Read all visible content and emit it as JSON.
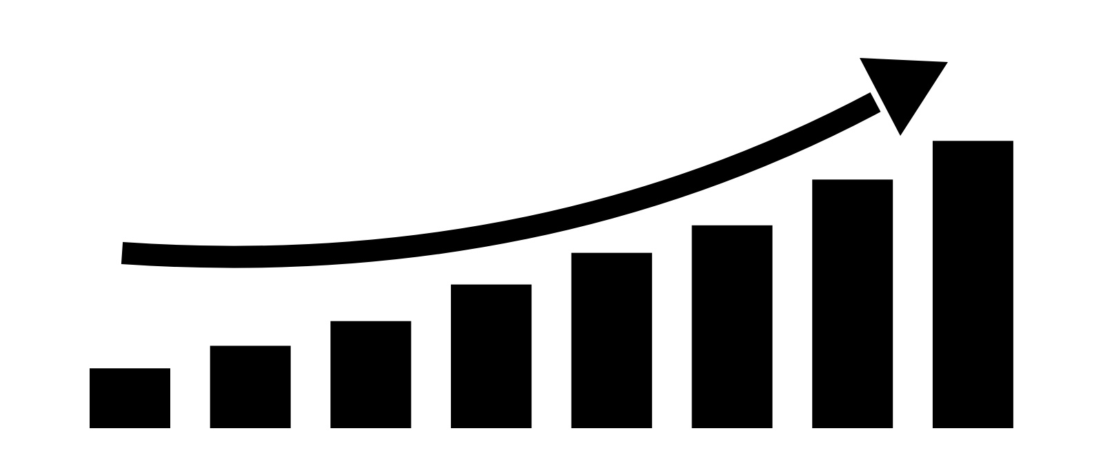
{
  "chart_data": {
    "type": "bar",
    "categories": [
      "",
      "",
      "",
      "",
      "",
      "",
      "",
      ""
    ],
    "values": [
      85,
      117,
      152,
      204,
      249,
      288,
      353,
      408
    ],
    "ylim": [
      0,
      420
    ],
    "grid": false,
    "axes_visible": false,
    "trend_arrow": true,
    "colors": {
      "bars": "#000000",
      "arrow": "#000000",
      "background": "#ffffff"
    }
  }
}
